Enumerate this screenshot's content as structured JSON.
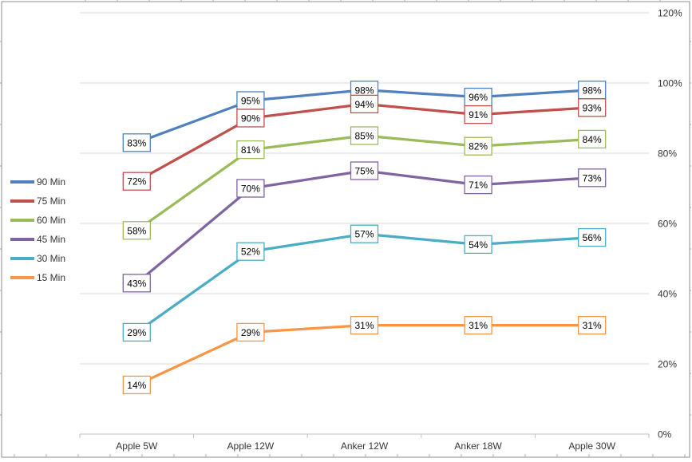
{
  "window": {
    "background": "#ffffff",
    "frame_color": "#8c8c8c",
    "edge_tick_color": "#a8a8a8"
  },
  "chart_data": {
    "type": "line",
    "categories": [
      "Apple 5W",
      "Apple 12W",
      "Anker 12W",
      "Anker 18W",
      "Apple 30W"
    ],
    "series": [
      {
        "name": "90 Min",
        "color": "#4F81BD",
        "values": [
          83,
          95,
          98,
          96,
          98
        ]
      },
      {
        "name": "75 Min",
        "color": "#C0504D",
        "values": [
          72,
          90,
          94,
          91,
          93
        ]
      },
      {
        "name": "60 Min",
        "color": "#9BBB59",
        "values": [
          58,
          81,
          85,
          82,
          84
        ]
      },
      {
        "name": "45 Min",
        "color": "#8064A2",
        "values": [
          43,
          70,
          75,
          71,
          73
        ]
      },
      {
        "name": "30 Min",
        "color": "#4BACC6",
        "values": [
          29,
          52,
          57,
          54,
          56
        ]
      },
      {
        "name": "15 Min",
        "color": "#F79646",
        "values": [
          14,
          29,
          31,
          31,
          31
        ]
      }
    ],
    "y_axis": {
      "min": 0,
      "max": 120,
      "step": 20,
      "position": "right",
      "tick_labels": [
        "0%",
        "20%",
        "40%",
        "60%",
        "80%",
        "100%",
        "120%"
      ]
    },
    "x_axis": {
      "tick_labels": [
        "Apple 5W",
        "Apple 12W",
        "Anker 12W",
        "Anker 18W",
        "Apple 30W"
      ]
    },
    "legend": {
      "position": "left",
      "entries": [
        "90 Min",
        "75 Min",
        "60 Min",
        "45 Min",
        "30 Min",
        "15 Min"
      ]
    },
    "grid": true,
    "data_label_suffix": "%",
    "colors": {
      "gridline": "#d9d9d9",
      "axis_line": "#bfbfbf",
      "axis_text": "#363636",
      "data_label_text": "#000000",
      "data_label_fill": "#ffffff"
    }
  }
}
